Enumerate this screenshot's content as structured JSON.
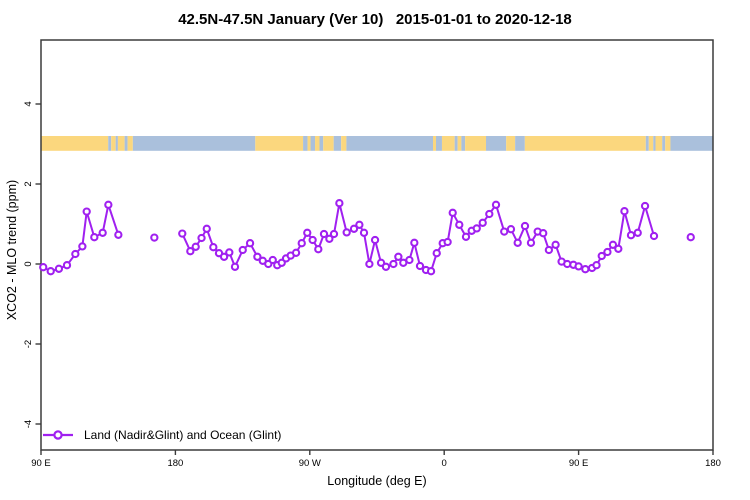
{
  "header": {
    "title": "42.5N-47.5N January (Ver 10)   2015-01-01 to 2020-12-18"
  },
  "legend": {
    "label": "Land (Nadir&Glint) and Ocean (Glint)"
  },
  "chart_data": {
    "type": "line",
    "title": "42.5N-47.5N January (Ver 10)   2015-01-01 to 2020-12-18",
    "xlabel": "Longitude (deg E)",
    "ylabel": "XCO2 - MLO trend (ppm)",
    "xlim": [
      90,
      540
    ],
    "ylim": [
      -4.65,
      5.6
    ],
    "grid": false,
    "legend_position": "bottom-left",
    "x_ticks": [
      {
        "pos": 90,
        "label": "90 E"
      },
      {
        "pos": 180,
        "label": "180"
      },
      {
        "pos": 270,
        "label": "90 W"
      },
      {
        "pos": 360,
        "label": "0"
      },
      {
        "pos": 450,
        "label": "90 E"
      },
      {
        "pos": 540,
        "label": "180"
      }
    ],
    "y_ticks": [
      {
        "pos": -4,
        "label": "-4"
      },
      {
        "pos": -2,
        "label": "-2"
      },
      {
        "pos": 0,
        "label": "0"
      },
      {
        "pos": 2,
        "label": "2"
      },
      {
        "pos": 4,
        "label": "4"
      }
    ],
    "colors": {
      "series": "#A020F0",
      "marker_fill": "#ffffff",
      "land": "#FBD77E",
      "ocean": "#AAC0DC",
      "axis": "#3b3b3b",
      "text": "#000000"
    },
    "map_band": {
      "value_top": 3.2,
      "value_bottom": 2.83,
      "segments": [
        [
          90,
          135,
          "land"
        ],
        [
          135,
          137,
          "ocean"
        ],
        [
          137,
          140,
          "land"
        ],
        [
          140,
          141.5,
          "ocean"
        ],
        [
          141.5,
          146,
          "land"
        ],
        [
          146,
          148,
          "ocean"
        ],
        [
          148,
          151.5,
          "land"
        ],
        [
          151.5,
          233.5,
          "ocean"
        ],
        [
          233.5,
          265.5,
          "land"
        ],
        [
          265.5,
          268.5,
          "ocean"
        ],
        [
          268.5,
          270.5,
          "land"
        ],
        [
          270.5,
          273.5,
          "ocean"
        ],
        [
          273.5,
          276.5,
          "land"
        ],
        [
          276.5,
          279,
          "ocean"
        ],
        [
          279,
          286,
          "land"
        ],
        [
          286,
          291,
          "ocean"
        ],
        [
          291,
          294.5,
          "land"
        ],
        [
          294.5,
          352.5,
          "ocean"
        ],
        [
          352.5,
          354.5,
          "land"
        ],
        [
          354.5,
          358.5,
          "ocean"
        ],
        [
          358.5,
          367,
          "land"
        ],
        [
          367,
          369,
          "ocean"
        ],
        [
          369,
          371.5,
          "land"
        ],
        [
          371.5,
          374,
          "ocean"
        ],
        [
          374,
          388,
          "land"
        ],
        [
          388,
          401.5,
          "ocean"
        ],
        [
          401.5,
          407.5,
          "land"
        ],
        [
          407.5,
          414,
          "ocean"
        ],
        [
          414,
          495,
          "land"
        ],
        [
          495,
          497,
          "ocean"
        ],
        [
          497,
          500,
          "land"
        ],
        [
          500,
          501.5,
          "ocean"
        ],
        [
          501.5,
          506,
          "land"
        ],
        [
          506,
          508,
          "ocean"
        ],
        [
          508,
          511.5,
          "land"
        ],
        [
          511.5,
          540,
          "ocean"
        ]
      ]
    },
    "gap_threshold": 8,
    "series": [
      {
        "name": "Land (Nadir&Glint) and Ocean (Glint)",
        "marker": "open-circle",
        "points": [
          [
            91.5,
            -0.08
          ],
          [
            96.5,
            -0.18
          ],
          [
            102,
            -0.12
          ],
          [
            107.4,
            -0.03
          ],
          [
            113,
            0.25
          ],
          [
            117.7,
            0.44
          ],
          [
            120.6,
            1.31
          ],
          [
            125.7,
            0.67
          ],
          [
            131.3,
            0.78
          ],
          [
            135.1,
            1.48
          ],
          [
            141.8,
            0.73
          ],
          [
            165.9,
            0.66
          ],
          [
            184.6,
            0.76
          ],
          [
            190,
            0.32
          ],
          [
            193.6,
            0.43
          ],
          [
            197.5,
            0.65
          ],
          [
            201,
            0.88
          ],
          [
            205.4,
            0.42
          ],
          [
            209.2,
            0.27
          ],
          [
            212.6,
            0.18
          ],
          [
            216.1,
            0.29
          ],
          [
            219.9,
            -0.07
          ],
          [
            225.1,
            0.35
          ],
          [
            230,
            0.52
          ],
          [
            234.9,
            0.18
          ],
          [
            238.5,
            0.08
          ],
          [
            242.2,
            0
          ],
          [
            245.2,
            0.1
          ],
          [
            248.2,
            -0.03
          ],
          [
            251.2,
            0.03
          ],
          [
            254.1,
            0.14
          ],
          [
            257.2,
            0.21
          ],
          [
            260.8,
            0.28
          ],
          [
            264.6,
            0.52
          ],
          [
            268.3,
            0.78
          ],
          [
            271.9,
            0.6
          ],
          [
            275.7,
            0.37
          ],
          [
            279.5,
            0.75
          ],
          [
            283.1,
            0.63
          ],
          [
            286.2,
            0.75
          ],
          [
            289.8,
            1.52
          ],
          [
            294.7,
            0.79
          ],
          [
            299.6,
            0.88
          ],
          [
            303.2,
            0.98
          ],
          [
            306.3,
            0.78
          ],
          [
            309.9,
            0
          ],
          [
            313.7,
            0.6
          ],
          [
            317.7,
            0.03
          ],
          [
            321,
            -0.07
          ],
          [
            326,
            0
          ],
          [
            329.3,
            0.18
          ],
          [
            332.6,
            0.03
          ],
          [
            336.7,
            0.1
          ],
          [
            340,
            0.53
          ],
          [
            343.8,
            -0.05
          ],
          [
            347.8,
            -0.15
          ],
          [
            351.2,
            -0.18
          ],
          [
            355,
            0.27
          ],
          [
            359,
            0.52
          ],
          [
            362.3,
            0.55
          ],
          [
            365.7,
            1.28
          ],
          [
            370.1,
            0.98
          ],
          [
            374.6,
            0.68
          ],
          [
            378.4,
            0.83
          ],
          [
            381.8,
            0.89
          ],
          [
            385.8,
            1.03
          ],
          [
            390.2,
            1.25
          ],
          [
            394.7,
            1.48
          ],
          [
            400.2,
            0.81
          ],
          [
            404.7,
            0.87
          ],
          [
            409.2,
            0.53
          ],
          [
            414.1,
            0.95
          ],
          [
            418.1,
            0.53
          ],
          [
            422.6,
            0.81
          ],
          [
            426.3,
            0.77
          ],
          [
            430.1,
            0.35
          ],
          [
            434.6,
            0.48
          ],
          [
            438.6,
            0.06
          ],
          [
            442.4,
            0
          ],
          [
            446.5,
            -0.02
          ],
          [
            450,
            -0.06
          ],
          [
            454.5,
            -0.13
          ],
          [
            459,
            -0.1
          ],
          [
            462,
            -0.03
          ],
          [
            465.5,
            0.2
          ],
          [
            469.3,
            0.3
          ],
          [
            473,
            0.48
          ],
          [
            476.6,
            0.38
          ],
          [
            480.7,
            1.32
          ],
          [
            485.1,
            0.72
          ],
          [
            489.6,
            0.78
          ],
          [
            494.5,
            1.45
          ],
          [
            500.5,
            0.7
          ],
          [
            525.1,
            0.67
          ]
        ]
      }
    ]
  }
}
